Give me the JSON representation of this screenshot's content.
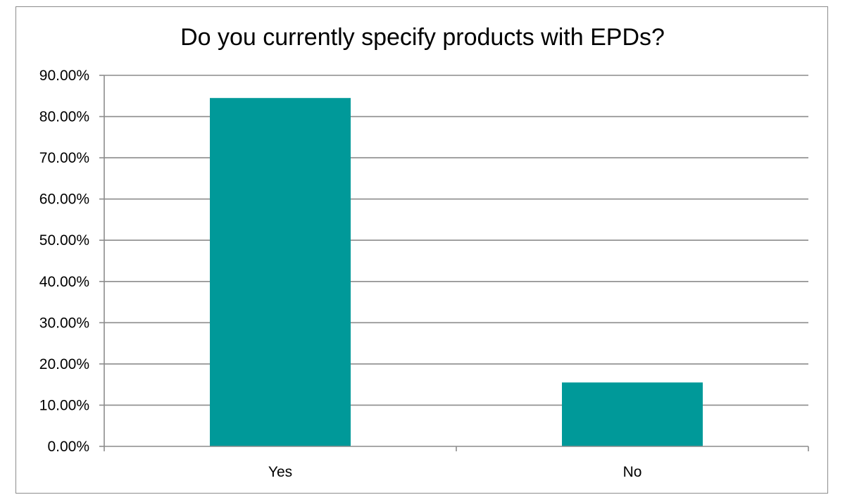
{
  "chart_data": {
    "type": "bar",
    "title": "Do you currently specify products with EPDs?",
    "xlabel": "",
    "ylabel": "",
    "categories": [
      "Yes",
      "No"
    ],
    "values": [
      84.5,
      15.5
    ],
    "ylim": [
      0,
      90
    ],
    "ytick_step": 10,
    "ytick_labels": [
      "0.00%",
      "10.00%",
      "20.00%",
      "30.00%",
      "40.00%",
      "50.00%",
      "60.00%",
      "70.00%",
      "80.00%",
      "90.00%"
    ],
    "grid": true,
    "legend": "none",
    "colors": {
      "bar": "#009999",
      "grid": "#8c8c8c",
      "axis": "#8c8c8c"
    }
  }
}
